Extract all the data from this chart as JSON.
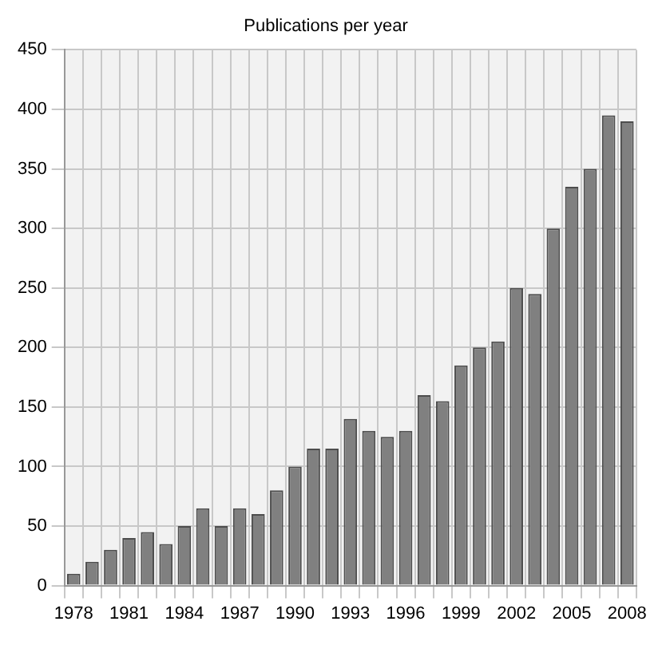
{
  "chart_data": {
    "type": "bar",
    "title": "Publications per year",
    "categories": [
      "1978",
      null,
      null,
      "1981",
      null,
      null,
      "1984",
      null,
      null,
      "1987",
      null,
      null,
      "1990",
      null,
      null,
      "1993",
      null,
      null,
      "1996",
      null,
      null,
      "1999",
      null,
      null,
      "2002",
      null,
      null,
      "2005",
      null,
      null,
      "2008"
    ],
    "values": [
      10,
      20,
      30,
      40,
      45,
      35,
      50,
      65,
      50,
      65,
      60,
      80,
      100,
      115,
      115,
      140,
      130,
      125,
      130,
      160,
      155,
      185,
      200,
      205,
      250,
      245,
      300,
      335,
      350,
      395,
      390
    ],
    "color": "#808080",
    "ylim": [
      0,
      450
    ],
    "yticks": [
      0,
      50,
      100,
      150,
      200,
      250,
      300,
      350,
      400,
      450
    ],
    "grid": true,
    "legend": false
  }
}
